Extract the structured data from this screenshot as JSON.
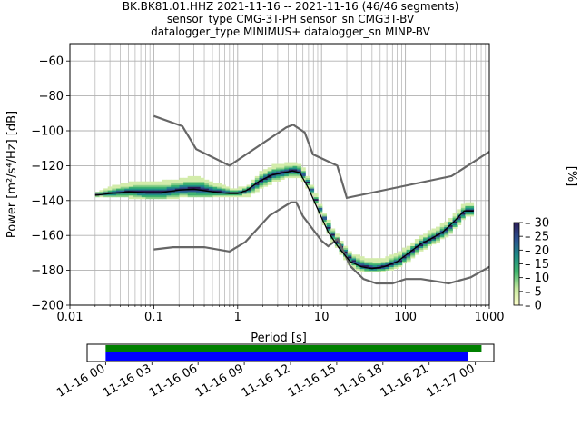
{
  "title": {
    "line1": "BK.BK81.01.HHZ   2021-11-16 -- 2021-11-16  (46/46 segments)",
    "line2": "sensor_type CMG-3T-PH sensor_sn CMG3T-BV",
    "line3": "datalogger_type MINIMUS+ datalogger_sn MINP-BV"
  },
  "colorbar": {
    "label": "[%]",
    "ticks": [
      "0",
      "5",
      "10",
      "15",
      "20",
      "25",
      "30"
    ],
    "range": [
      0,
      30
    ]
  },
  "colors": {
    "noise_model": "#666666",
    "mean": "#000000",
    "coverage_data": "#008000",
    "coverage_gaps": "#0000ff"
  },
  "chart_data": [
    {
      "type": "heatmap",
      "xlabel": "Period [s]",
      "ylabel": "Power [m²/s⁴/Hz] [dB]",
      "x_scale": "log",
      "xlim": [
        0.01,
        1000
      ],
      "ylim": [
        -200,
        -50
      ],
      "x_ticks": [
        "0.01",
        "0.1",
        "1",
        "10",
        "100",
        "1000"
      ],
      "y_ticks": [
        "−200",
        "−180",
        "−160",
        "−140",
        "−120",
        "−100",
        "−80",
        "−60"
      ],
      "grid": true,
      "series": [
        {
          "role": "high-noise-model",
          "x": [
            0.1,
            0.22,
            0.32,
            0.8,
            3.8,
            4.6,
            6.3,
            7.9,
            15.4,
            20,
            354.8,
            1000
          ],
          "y": [
            -91.5,
            -97.4,
            -110.5,
            -120,
            -98,
            -96.5,
            -101,
            -113.5,
            -120,
            -138.5,
            -126,
            -112
          ]
        },
        {
          "role": "low-noise-model",
          "x": [
            0.1,
            0.17,
            0.4,
            0.8,
            1.24,
            2.4,
            4.3,
            5.0,
            6.0,
            10,
            12,
            15.6,
            21.9,
            31.6,
            45,
            70,
            101,
            154,
            328,
            600,
            1000
          ],
          "y": [
            -168,
            -166.7,
            -166.7,
            -169.2,
            -163.7,
            -148.6,
            -141.1,
            -141.1,
            -149,
            -163,
            -166.2,
            -162.1,
            -177.5,
            -185,
            -187.5,
            -187.5,
            -185,
            -185,
            -187.5,
            -184,
            -178
          ]
        },
        {
          "role": "mean",
          "x": [
            0.02,
            0.03,
            0.05,
            0.08,
            0.12,
            0.2,
            0.3,
            0.5,
            0.8,
            1.0,
            1.3,
            1.8,
            2.5,
            3.5,
            4.5,
            5.5,
            7,
            9,
            12,
            16,
            22,
            30,
            40,
            55,
            80,
            110,
            150,
            200,
            280,
            380,
            500,
            650
          ],
          "y": [
            -137,
            -136,
            -135,
            -135.5,
            -135.5,
            -134,
            -133.5,
            -135,
            -136,
            -136,
            -134,
            -129,
            -125.5,
            -124,
            -123,
            -124,
            -133,
            -145,
            -158,
            -167,
            -175,
            -178,
            -179,
            -178,
            -175,
            -170,
            -165,
            -162,
            -158,
            -152,
            -146,
            -146
          ]
        },
        {
          "role": "psd-upper-envelope",
          "x": [
            0.02,
            0.03,
            0.05,
            0.08,
            0.12,
            0.2,
            0.3,
            0.5,
            0.8,
            1.0,
            1.3,
            1.8,
            2.5,
            3.5,
            4.5,
            5.5,
            7,
            9,
            12,
            16,
            22,
            30,
            40,
            55,
            80,
            110,
            150,
            200,
            280,
            380,
            500,
            650
          ],
          "y": [
            -136,
            -133,
            -131,
            -130,
            -130,
            -129,
            -127,
            -131,
            -134,
            -134,
            -132,
            -125,
            -121,
            -120,
            -119,
            -121,
            -131,
            -143,
            -155,
            -164,
            -172,
            -174,
            -175,
            -174,
            -171,
            -166,
            -161,
            -158,
            -154,
            -148,
            -142,
            -142
          ]
        },
        {
          "role": "psd-lower-envelope",
          "x": [
            0.02,
            0.03,
            0.05,
            0.08,
            0.12,
            0.2,
            0.3,
            0.5,
            0.8,
            1.0,
            1.3,
            1.8,
            2.5,
            3.5,
            4.5,
            5.5,
            7,
            9,
            12,
            16,
            22,
            30,
            40,
            55,
            80,
            110,
            150,
            200,
            280,
            380,
            500,
            650
          ],
          "y": [
            -138,
            -138,
            -138,
            -139,
            -139,
            -138,
            -138,
            -138,
            -138,
            -138,
            -137,
            -133,
            -129,
            -127,
            -126,
            -127,
            -135,
            -147,
            -161,
            -170,
            -178,
            -181,
            -181,
            -180,
            -178,
            -173,
            -168,
            -165,
            -161,
            -155,
            -149,
            -149
          ]
        }
      ]
    },
    {
      "type": "bar",
      "role": "data-coverage-timeline",
      "x_ticks": [
        "11-16 00",
        "11-16 03",
        "11-16 06",
        "11-16 09",
        "11-16 12",
        "11-16 15",
        "11-16 18",
        "11-16 21",
        "11-17 00"
      ],
      "xlim_hours": [
        -1.2,
        25.2
      ],
      "series": [
        {
          "role": "data-available",
          "start_hour": 0.0,
          "end_hour": 24.4
        },
        {
          "role": "psd-segments",
          "start_hour": 0.0,
          "end_hour": 23.5
        }
      ]
    }
  ]
}
